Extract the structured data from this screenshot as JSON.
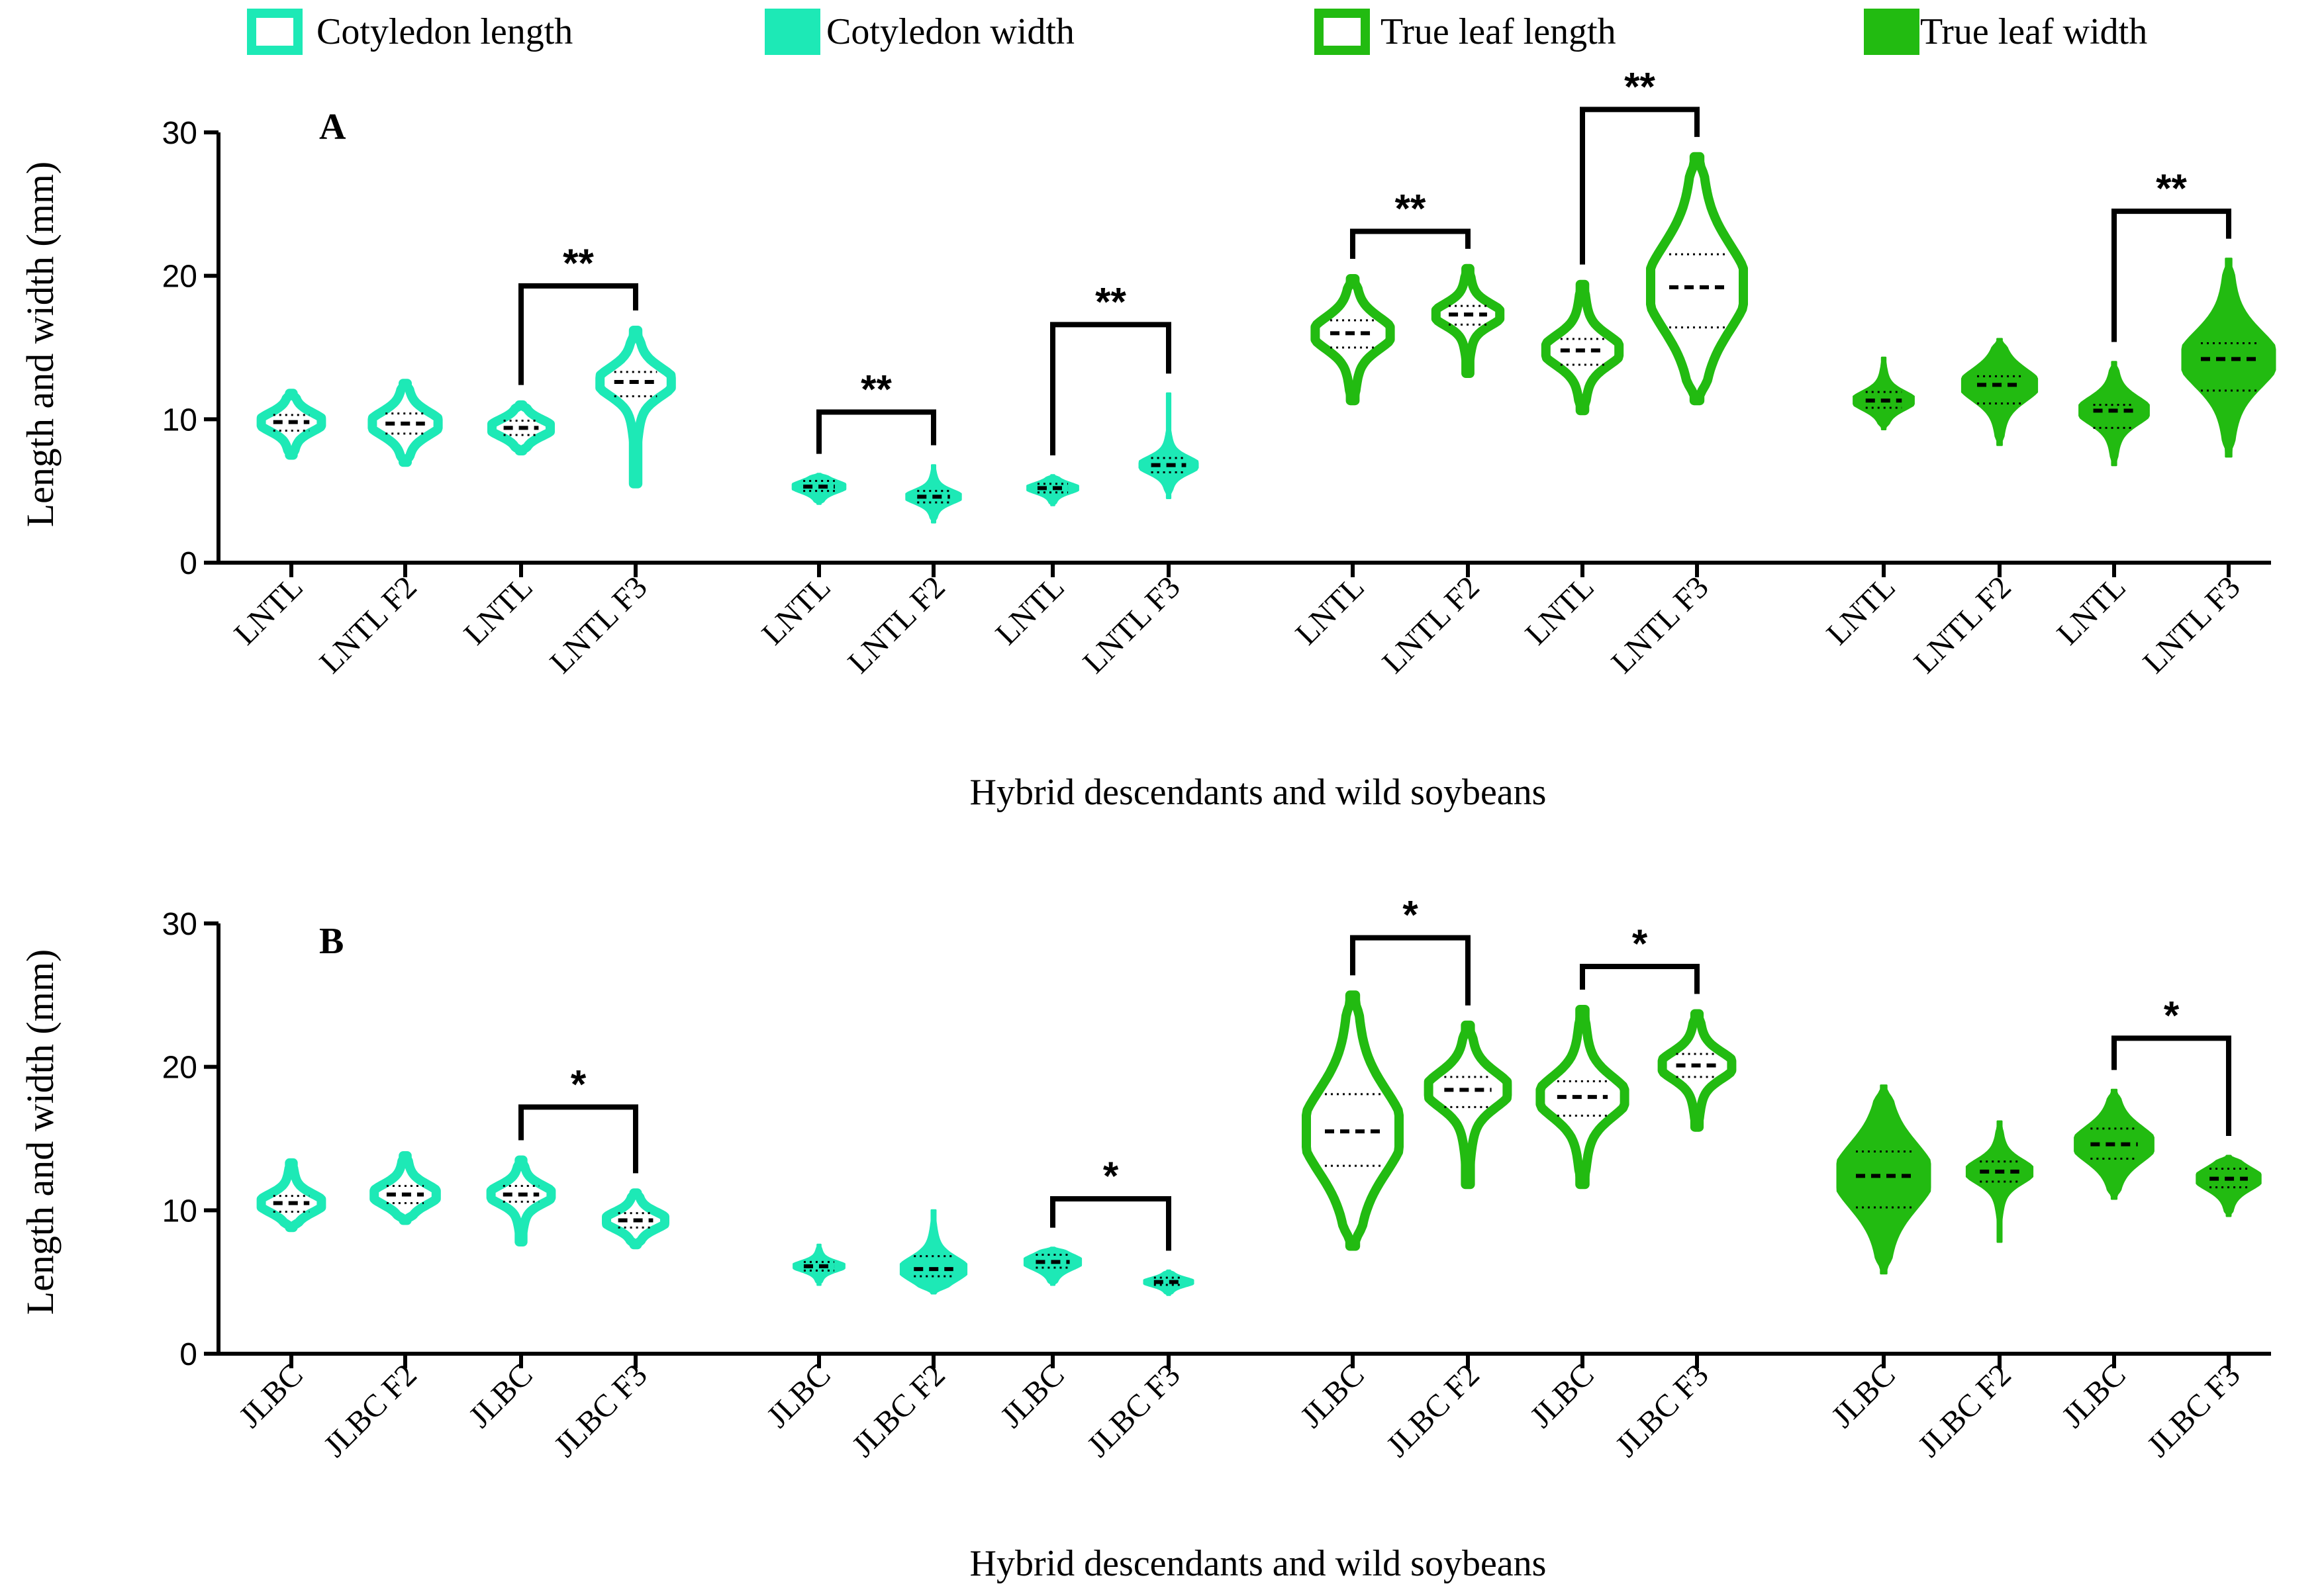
{
  "legend": {
    "items": [
      {
        "label": "Cotyledon length",
        "color": "#1de9b6",
        "style": "outline"
      },
      {
        "label": "Cotyledon width",
        "color": "#1de9b6",
        "style": "filled"
      },
      {
        "label": "True leaf length",
        "color": "#22bb11",
        "style": "outline"
      },
      {
        "label": "True leaf width",
        "color": "#22bb11",
        "style": "filled"
      }
    ]
  },
  "colors": {
    "cotyledon": "#1de9b6",
    "true_leaf": "#22bb11",
    "axis": "#000000"
  },
  "chart_data": [
    {
      "type": "violin",
      "panel_label": "A",
      "ylabel": "Length and width (mm)",
      "xlabel": "Hybrid descendants and wild soybeans",
      "ylim": [
        0,
        30
      ],
      "yticks": [
        0,
        10,
        20,
        30
      ],
      "groups": [
        {
          "trait": "Cotyledon length",
          "violins": [
            {
              "label": "LNTL",
              "median": 9.8,
              "q1": 9.2,
              "q3": 10.3,
              "min": 7.5,
              "max": 11.8
            },
            {
              "label": "LNTL F2",
              "median": 9.7,
              "q1": 9.0,
              "q3": 10.4,
              "min": 7.0,
              "max": 12.5
            },
            {
              "label": "LNTL",
              "median": 9.4,
              "q1": 8.9,
              "q3": 9.9,
              "min": 7.8,
              "max": 11.0
            },
            {
              "label": "LNTL F3",
              "median": 12.6,
              "q1": 11.6,
              "q3": 13.3,
              "min": 5.5,
              "max": 16.2
            }
          ],
          "comparisons": [
            {
              "from": 2,
              "to": 3,
              "label": "**",
              "bracket_y": 19.3
            }
          ]
        },
        {
          "trait": "Cotyledon width",
          "violins": [
            {
              "label": "LNTL",
              "median": 5.3,
              "q1": 5.0,
              "q3": 5.7,
              "min": 4.1,
              "max": 6.2
            },
            {
              "label": "LNTL F2",
              "median": 4.6,
              "q1": 4.2,
              "q3": 5.0,
              "min": 2.8,
              "max": 6.8
            },
            {
              "label": "LNTL",
              "median": 5.2,
              "q1": 4.9,
              "q3": 5.5,
              "min": 4.0,
              "max": 6.1
            },
            {
              "label": "LNTL F3",
              "median": 6.8,
              "q1": 6.3,
              "q3": 7.3,
              "min": 4.5,
              "max": 11.8
            }
          ],
          "comparisons": [
            {
              "from": 0,
              "to": 1,
              "label": "**",
              "bracket_y": 10.5
            },
            {
              "from": 2,
              "to": 3,
              "label": "**",
              "bracket_y": 16.6
            }
          ]
        },
        {
          "trait": "True leaf length",
          "violins": [
            {
              "label": "LNTL",
              "median": 16.0,
              "q1": 15.0,
              "q3": 16.9,
              "min": 11.3,
              "max": 19.8
            },
            {
              "label": "LNTL F2",
              "median": 17.3,
              "q1": 16.6,
              "q3": 17.9,
              "min": 13.2,
              "max": 20.5
            },
            {
              "label": "LNTL",
              "median": 14.8,
              "q1": 13.8,
              "q3": 15.6,
              "min": 10.6,
              "max": 19.4
            },
            {
              "label": "LNTL F3",
              "median": 19.2,
              "q1": 16.4,
              "q3": 21.5,
              "min": 11.3,
              "max": 28.3
            }
          ],
          "comparisons": [
            {
              "from": 0,
              "to": 1,
              "label": "**",
              "bracket_y": 23.1
            },
            {
              "from": 2,
              "to": 3,
              "label": "**",
              "bracket_y": 31.6
            }
          ]
        },
        {
          "trait": "True leaf width",
          "violins": [
            {
              "label": "LNTL",
              "median": 11.3,
              "q1": 10.8,
              "q3": 11.9,
              "min": 9.3,
              "max": 14.3
            },
            {
              "label": "LNTL F2",
              "median": 12.4,
              "q1": 11.1,
              "q3": 13.0,
              "min": 8.2,
              "max": 15.6
            },
            {
              "label": "LNTL",
              "median": 10.6,
              "q1": 9.4,
              "q3": 11.0,
              "min": 6.8,
              "max": 14.0
            },
            {
              "label": "LNTL F3",
              "median": 14.2,
              "q1": 12.0,
              "q3": 15.3,
              "min": 7.4,
              "max": 21.2
            }
          ],
          "comparisons": [
            {
              "from": 2,
              "to": 3,
              "label": "**",
              "bracket_y": 24.5
            }
          ]
        }
      ]
    },
    {
      "type": "violin",
      "panel_label": "B",
      "ylabel": "Length and width (mm)",
      "xlabel": "Hybrid descendants and wild soybeans",
      "ylim": [
        0,
        30
      ],
      "yticks": [
        0,
        10,
        20,
        30
      ],
      "groups": [
        {
          "trait": "Cotyledon length",
          "violins": [
            {
              "label": "JLBC",
              "median": 10.5,
              "q1": 9.9,
              "q3": 11.0,
              "min": 8.8,
              "max": 13.3
            },
            {
              "label": "JLBC F2",
              "median": 11.1,
              "q1": 10.5,
              "q3": 11.7,
              "min": 9.3,
              "max": 13.8
            },
            {
              "label": "JLBC",
              "median": 11.1,
              "q1": 10.6,
              "q3": 11.7,
              "min": 7.8,
              "max": 13.5
            },
            {
              "label": "JLBC F3",
              "median": 9.3,
              "q1": 8.8,
              "q3": 9.8,
              "min": 7.6,
              "max": 11.2
            }
          ],
          "comparisons": [
            {
              "from": 2,
              "to": 3,
              "label": "*",
              "bracket_y": 17.2
            }
          ]
        },
        {
          "trait": "Cotyledon width",
          "violins": [
            {
              "label": "JLBC",
              "median": 6.1,
              "q1": 5.8,
              "q3": 6.4,
              "min": 4.8,
              "max": 7.6
            },
            {
              "label": "JLBC F2",
              "median": 5.9,
              "q1": 5.4,
              "q3": 6.8,
              "min": 4.2,
              "max": 10.0
            },
            {
              "label": "JLBC",
              "median": 6.4,
              "q1": 6.0,
              "q3": 6.9,
              "min": 4.8,
              "max": 7.4
            },
            {
              "label": "JLBC F3",
              "median": 5.0,
              "q1": 4.8,
              "q3": 5.3,
              "min": 4.1,
              "max": 5.8
            }
          ],
          "comparisons": [
            {
              "from": 2,
              "to": 3,
              "label": "*",
              "bracket_y": 10.8
            }
          ]
        },
        {
          "trait": "True leaf length",
          "violins": [
            {
              "label": "JLBC",
              "median": 15.5,
              "q1": 13.1,
              "q3": 18.1,
              "min": 7.5,
              "max": 25.0
            },
            {
              "label": "JLBC F2",
              "median": 18.4,
              "q1": 17.2,
              "q3": 19.3,
              "min": 11.8,
              "max": 22.9
            },
            {
              "label": "JLBC",
              "median": 17.9,
              "q1": 16.6,
              "q3": 19.0,
              "min": 11.8,
              "max": 24.0
            },
            {
              "label": "JLBC F3",
              "median": 20.1,
              "q1": 19.3,
              "q3": 20.9,
              "min": 15.8,
              "max": 23.7
            }
          ],
          "comparisons": [
            {
              "from": 0,
              "to": 1,
              "label": "*",
              "bracket_y": 29.0
            },
            {
              "from": 2,
              "to": 3,
              "label": "*",
              "bracket_y": 27.0
            }
          ]
        },
        {
          "trait": "True leaf width",
          "violins": [
            {
              "label": "JLBC",
              "median": 12.4,
              "q1": 10.2,
              "q3": 14.1,
              "min": 5.6,
              "max": 18.7
            },
            {
              "label": "JLBC F2",
              "median": 12.7,
              "q1": 12.0,
              "q3": 13.4,
              "min": 7.8,
              "max": 16.2
            },
            {
              "label": "JLBC",
              "median": 14.6,
              "q1": 13.6,
              "q3": 15.7,
              "min": 10.8,
              "max": 18.4
            },
            {
              "label": "JLBC F3",
              "median": 12.2,
              "q1": 11.6,
              "q3": 12.9,
              "min": 9.6,
              "max": 13.8
            }
          ],
          "comparisons": [
            {
              "from": 2,
              "to": 3,
              "label": "*",
              "bracket_y": 22.0
            }
          ]
        }
      ]
    }
  ]
}
